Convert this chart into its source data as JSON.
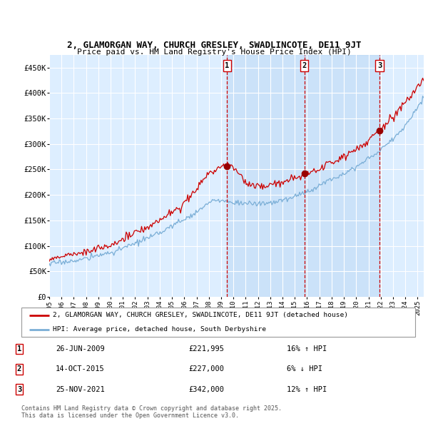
{
  "title": "2, GLAMORGAN WAY, CHURCH GRESLEY, SWADLINCOTE, DE11 9JT",
  "subtitle": "Price paid vs. HM Land Registry's House Price Index (HPI)",
  "ylabel_ticks": [
    "£0",
    "£50K",
    "£100K",
    "£150K",
    "£200K",
    "£250K",
    "£300K",
    "£350K",
    "£400K",
    "£450K"
  ],
  "ytick_values": [
    0,
    50000,
    100000,
    150000,
    200000,
    250000,
    300000,
    350000,
    400000,
    450000
  ],
  "ylim": [
    0,
    475000
  ],
  "xlim_start": 1995.0,
  "xlim_end": 2025.5,
  "xtick_years": [
    1995,
    1996,
    1997,
    1998,
    1999,
    2000,
    2001,
    2002,
    2003,
    2004,
    2005,
    2006,
    2007,
    2008,
    2009,
    2010,
    2011,
    2012,
    2013,
    2014,
    2015,
    2016,
    2017,
    2018,
    2019,
    2020,
    2021,
    2022,
    2023,
    2024,
    2025
  ],
  "plot_bg_color": "#ddeeff",
  "shade_color": "#cce0f5",
  "grid_color": "#ffffff",
  "line_color_red": "#cc0000",
  "line_color_blue": "#7aaed6",
  "sale_markers": [
    {
      "label": "1",
      "date_x": 2009.48,
      "price": 221995
    },
    {
      "label": "2",
      "date_x": 2015.78,
      "price": 227000
    },
    {
      "label": "3",
      "date_x": 2021.9,
      "price": 342000
    }
  ],
  "legend_entries": [
    "2, GLAMORGAN WAY, CHURCH GRESLEY, SWADLINCOTE, DE11 9JT (detached house)",
    "HPI: Average price, detached house, South Derbyshire"
  ],
  "table_rows": [
    {
      "num": "1",
      "date": "26-JUN-2009",
      "price": "£221,995",
      "change": "16% ↑ HPI"
    },
    {
      "num": "2",
      "date": "14-OCT-2015",
      "price": "£227,000",
      "change": "6% ↓ HPI"
    },
    {
      "num": "3",
      "date": "25-NOV-2021",
      "price": "£342,000",
      "change": "12% ↑ HPI"
    }
  ],
  "footnote": "Contains HM Land Registry data © Crown copyright and database right 2025.\nThis data is licensed under the Open Government Licence v3.0."
}
